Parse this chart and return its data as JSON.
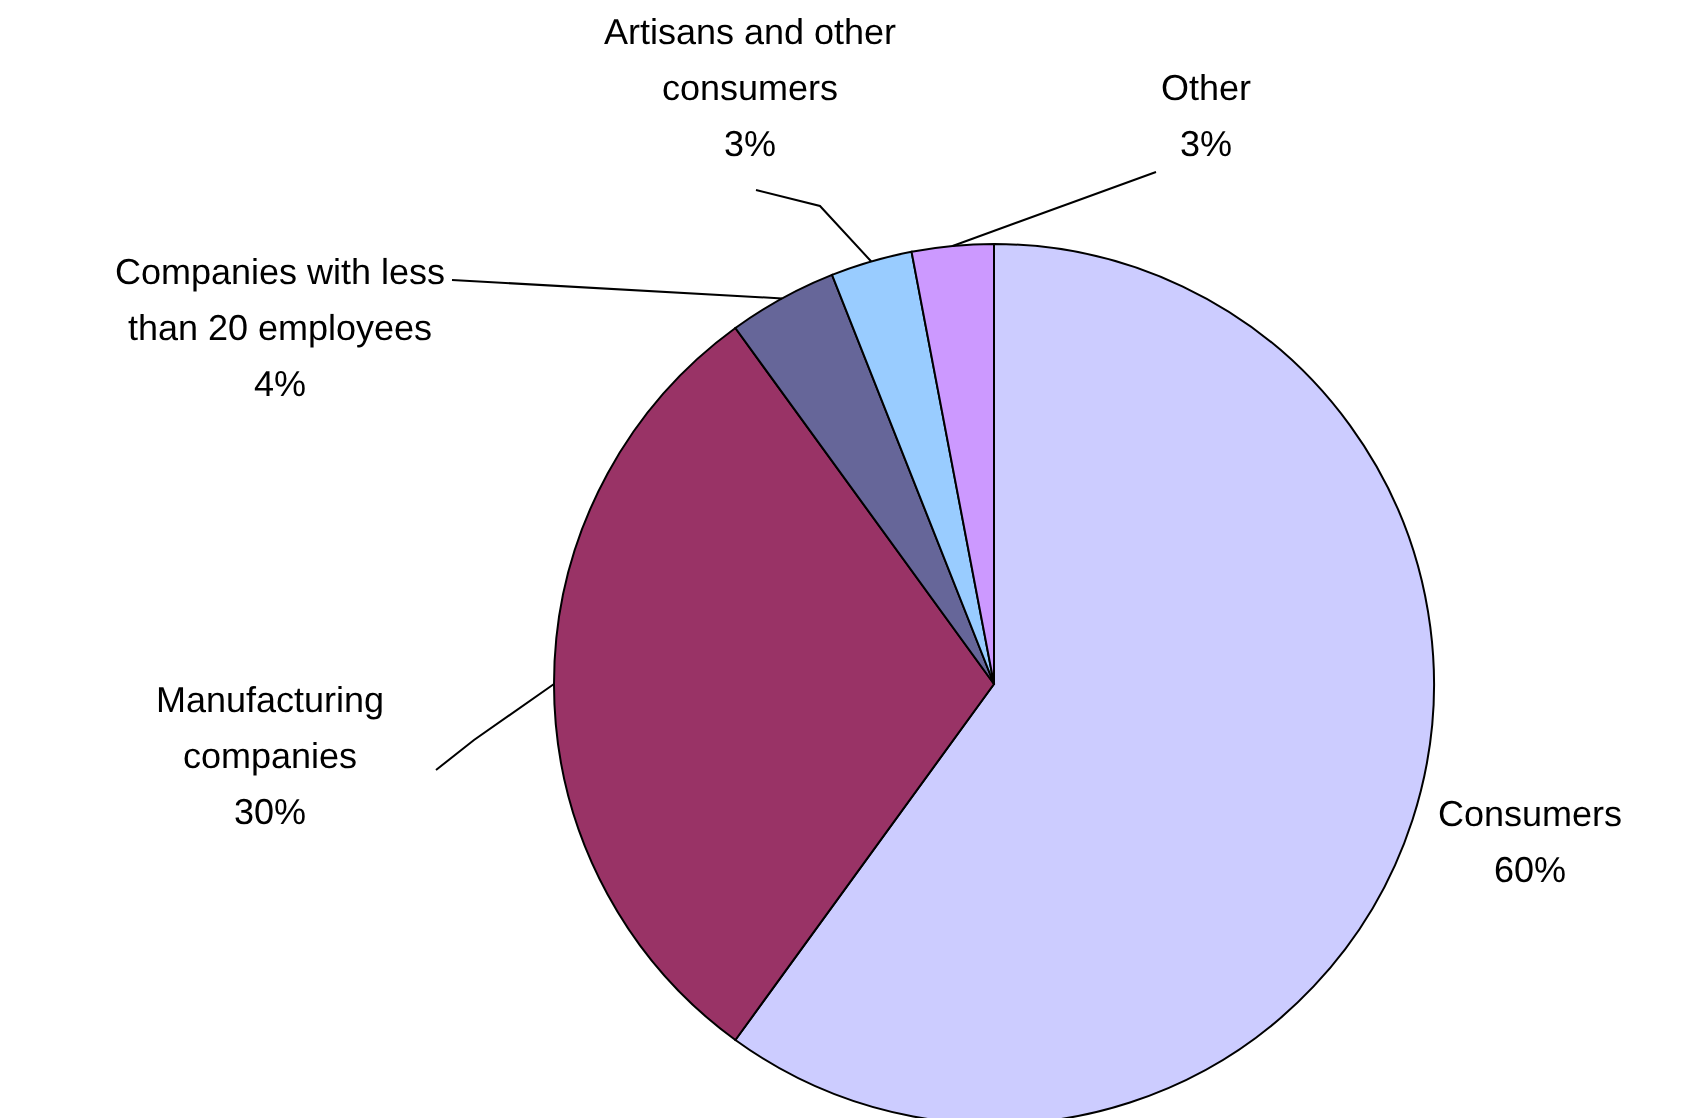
{
  "chart_data": {
    "type": "pie",
    "categories": [
      "Consumers",
      "Manufacturing companies",
      "Companies with less than 20 employees",
      "Artisans and other consumers",
      "Other"
    ],
    "values": [
      60,
      30,
      4,
      3,
      3
    ],
    "value_labels": [
      "60%",
      "30%",
      "4%",
      "3%",
      "3%"
    ],
    "colors": [
      "#ccccff",
      "#993366",
      "#666699",
      "#99ccff",
      "#cc99ff"
    ]
  }
}
